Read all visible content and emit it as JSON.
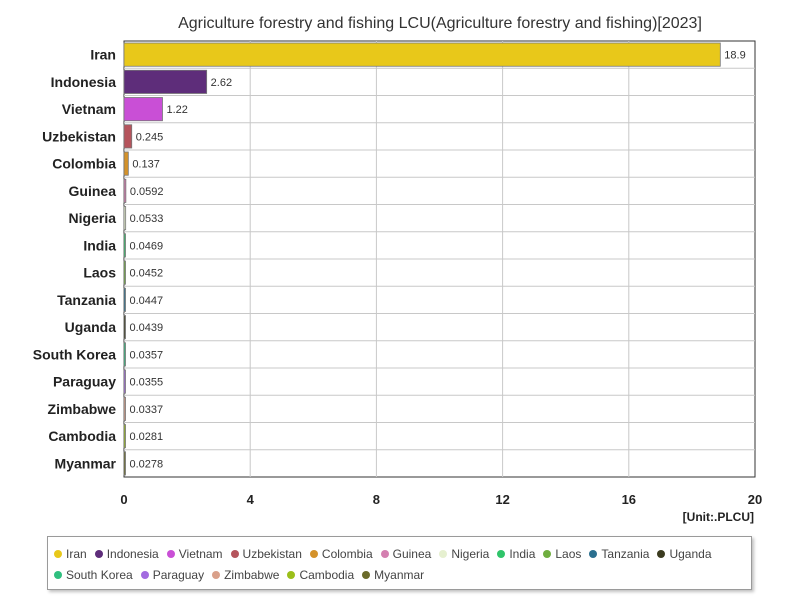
{
  "chart_data": {
    "type": "bar",
    "orientation": "horizontal",
    "title": "Agriculture forestry and fishing LCU(Agriculture forestry and fishing)[2023]",
    "unit_label": "[Unit:.PLCU]",
    "categories": [
      "Iran",
      "Indonesia",
      "Vietnam",
      "Uzbekistan",
      "Colombia",
      "Guinea",
      "Nigeria",
      "India",
      "Laos",
      "Tanzania",
      "Uganda",
      "South Korea",
      "Paraguay",
      "Zimbabwe",
      "Cambodia",
      "Myanmar"
    ],
    "values": [
      18.9,
      2.62,
      1.22,
      0.245,
      0.137,
      0.0592,
      0.0533,
      0.0469,
      0.0452,
      0.0447,
      0.0439,
      0.0357,
      0.0355,
      0.0337,
      0.0281,
      0.0278
    ],
    "value_labels": [
      "18.9",
      "2.62",
      "1.22",
      "0.245",
      "0.137",
      "0.0592",
      "0.0533",
      "0.0469",
      "0.0452",
      "0.0447",
      "0.0439",
      "0.0357",
      "0.0355",
      "0.0337",
      "0.0281",
      "0.0278"
    ],
    "colors": [
      "#e8c81a",
      "#5e2d7a",
      "#c94fd6",
      "#b5545c",
      "#d4922a",
      "#d47fb0",
      "#e6f0d0",
      "#2fc46a",
      "#6fae3f",
      "#2a6f8f",
      "#3b3b1f",
      "#2fbf7f",
      "#a36be0",
      "#d9a08a",
      "#9bbf1a",
      "#6b6b2a"
    ],
    "xlim": [
      0,
      20
    ],
    "xticks": [
      0,
      4,
      8,
      12,
      16,
      20
    ],
    "xtick_labels": [
      "0",
      "4",
      "8",
      "12",
      "16",
      "20"
    ],
    "grid": true,
    "legend_position": "bottom"
  }
}
